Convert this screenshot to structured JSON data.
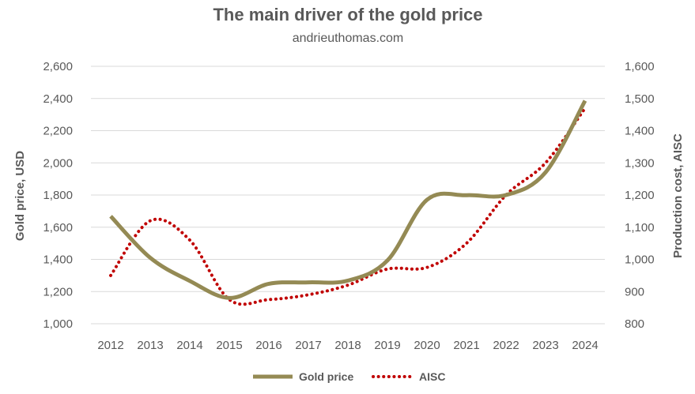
{
  "chart_data": {
    "type": "line",
    "title": "The main driver of the gold price",
    "subtitle": "andrieuthomas.com",
    "categories": [
      "2012",
      "2013",
      "2014",
      "2015",
      "2016",
      "2017",
      "2018",
      "2019",
      "2020",
      "2021",
      "2022",
      "2023",
      "2024"
    ],
    "y_left": {
      "label": "Gold price, USD",
      "ylim": [
        1000,
        2600
      ],
      "ticks": [
        1000,
        1200,
        1400,
        1600,
        1800,
        2000,
        2200,
        2400,
        2600
      ]
    },
    "y_right": {
      "label": "Production cost, AISC",
      "ylim": [
        800,
        1600
      ],
      "ticks": [
        800,
        900,
        1000,
        1100,
        1200,
        1300,
        1400,
        1500,
        1600
      ]
    },
    "series": [
      {
        "name": "Gold price",
        "axis": "left",
        "style": "solid",
        "color": "#948A54",
        "values": [
          1668,
          1410,
          1266,
          1160,
          1248,
          1257,
          1268,
          1393,
          1770,
          1799,
          1800,
          1941,
          2386
        ]
      },
      {
        "name": "AISC",
        "axis": "right",
        "style": "dotted",
        "color": "#C00000",
        "values": [
          950,
          1120,
          1060,
          875,
          875,
          890,
          920,
          970,
          975,
          1050,
          1200,
          1300,
          1470
        ]
      }
    ],
    "grid": true,
    "legend": "bottom-center"
  }
}
